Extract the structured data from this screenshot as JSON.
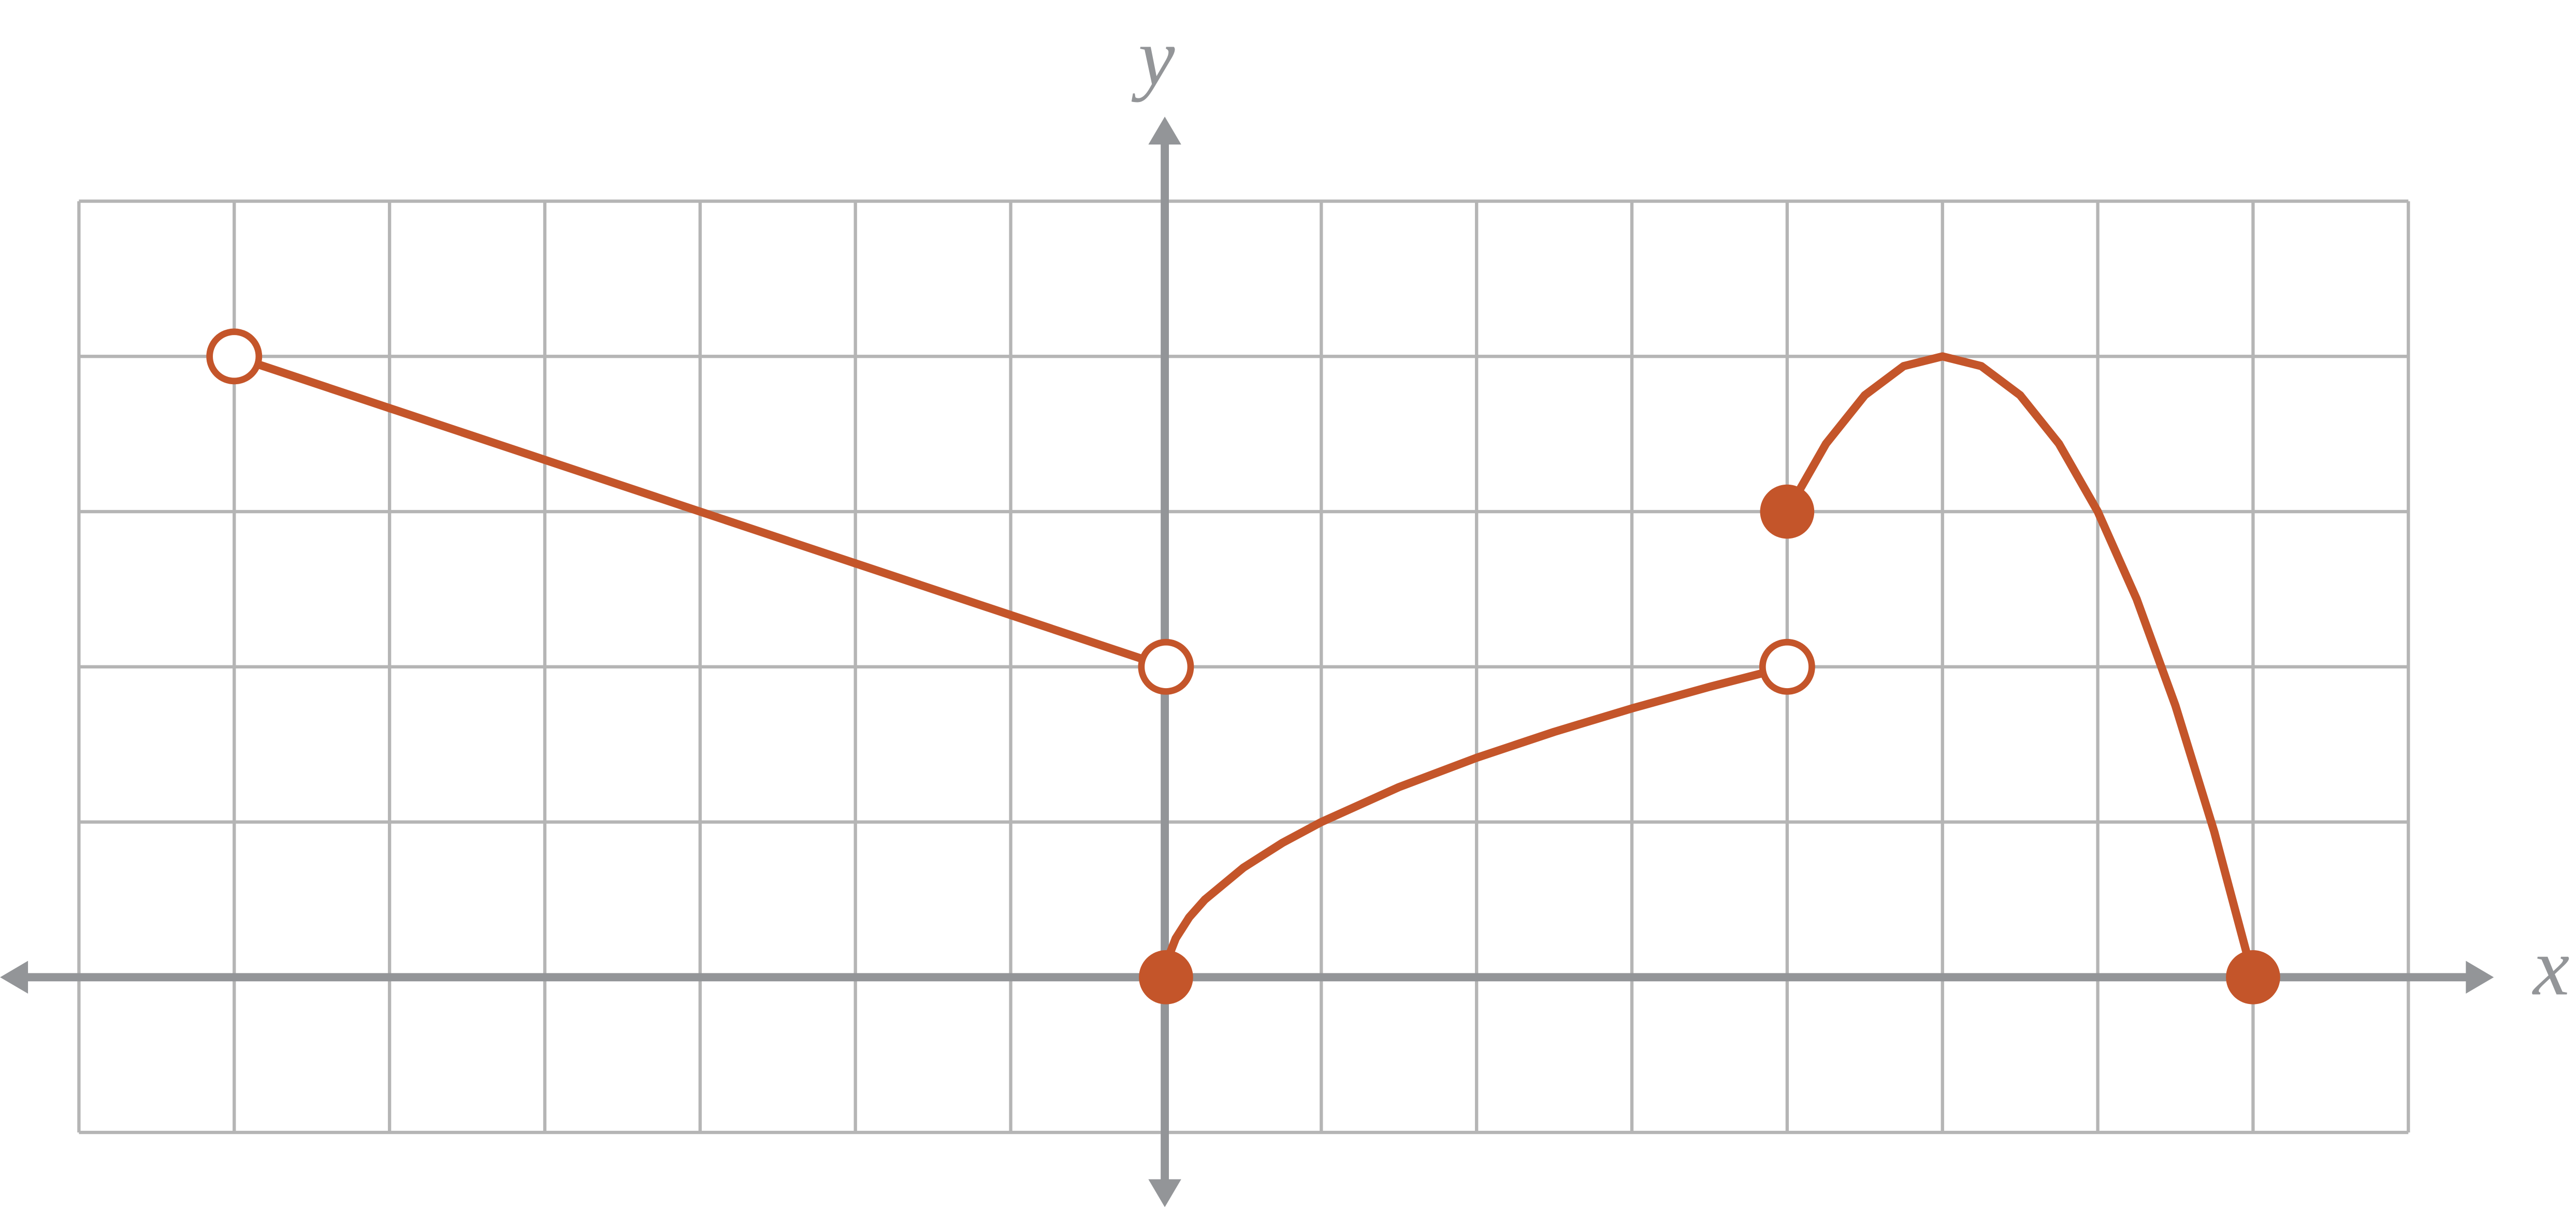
{
  "chart_data": {
    "type": "line",
    "x_label": "x",
    "y_label": "y",
    "xlim": [
      -7,
      8
    ],
    "ylim": [
      -1,
      5
    ],
    "xticks": [
      -7,
      -6,
      -5,
      -4,
      -3,
      -2,
      -1,
      0,
      1,
      2,
      3,
      4,
      5,
      6,
      7,
      8
    ],
    "yticks": [
      -1,
      0,
      1,
      2,
      3,
      4,
      5
    ],
    "grid": true,
    "color": "#c4552a",
    "series": [
      {
        "color": "#c4552a",
        "x": [
          -6,
          0
        ],
        "values": [
          4,
          2
        ]
      },
      {
        "color": "#c4552a",
        "x": [
          0,
          0.02,
          0.0625,
          0.15,
          0.25,
          0.5,
          0.75,
          1,
          1.5,
          2,
          2.5,
          3,
          3.5,
          4
        ],
        "values": [
          0,
          0.141,
          0.25,
          0.387,
          0.5,
          0.707,
          0.866,
          1,
          1.225,
          1.414,
          1.581,
          1.732,
          1.871,
          2
        ]
      },
      {
        "color": "#c4552a",
        "x": [
          4,
          4.25,
          4.5,
          4.75,
          5,
          5.25,
          5.5,
          5.75,
          6,
          6.25,
          6.5,
          6.75,
          7
        ],
        "values": [
          3,
          3.4375,
          3.75,
          3.9375,
          4,
          3.9375,
          3.75,
          3.4375,
          3,
          2.4375,
          1.75,
          0.9375,
          0
        ]
      }
    ],
    "points": [
      {
        "x": -6,
        "y": 4,
        "open": true
      },
      {
        "x": 0,
        "y": 2,
        "open": true
      },
      {
        "x": 0,
        "y": 0,
        "open": false
      },
      {
        "x": 4,
        "y": 2,
        "open": true
      },
      {
        "x": 4,
        "y": 3,
        "open": false
      },
      {
        "x": 7,
        "y": 0,
        "open": false
      }
    ]
  }
}
